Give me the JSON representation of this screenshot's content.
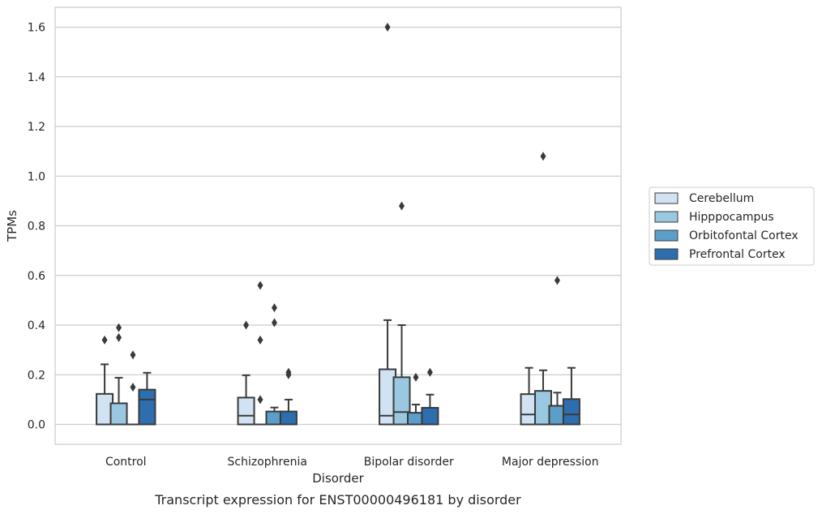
{
  "chart_data": {
    "type": "box",
    "title": "",
    "caption": "Transcript expression for ENST00000496181 by disorder",
    "xlabel": "Disorder",
    "ylabel": "TPMs",
    "ylim": [
      -0.08,
      1.68
    ],
    "y_ticks": [
      0.0,
      0.2,
      0.4,
      0.6,
      0.8,
      1.0,
      1.2,
      1.4,
      1.6
    ],
    "y_tick_labels": [
      "0.0",
      "0.2",
      "0.4",
      "0.6",
      "0.8",
      "1.0",
      "1.2",
      "1.4",
      "1.6"
    ],
    "grid": "horizontal",
    "legend_placement": "center-right outside",
    "categories": [
      "Control",
      "Schizophrenia",
      "Bipolar disorder",
      "Major depression"
    ],
    "series": [
      {
        "name": "Cerebellum",
        "color": "#d1e2f2",
        "boxes": [
          {
            "min": 0.0,
            "q1": 0.0,
            "median": 0.0,
            "q3": 0.123,
            "max": 0.242,
            "outliers": [
              0.34
            ]
          },
          {
            "min": 0.0,
            "q1": 0.0,
            "median": 0.035,
            "q3": 0.108,
            "max": 0.198,
            "outliers": [
              0.4
            ]
          },
          {
            "min": 0.0,
            "q1": 0.0,
            "median": 0.035,
            "q3": 0.222,
            "max": 0.42,
            "outliers": [
              1.6
            ]
          },
          {
            "min": 0.0,
            "q1": 0.0,
            "median": 0.04,
            "q3": 0.122,
            "max": 0.228,
            "outliers": []
          }
        ]
      },
      {
        "name": "Hipppocampus",
        "color": "#9ac8e0",
        "boxes": [
          {
            "min": 0.0,
            "q1": 0.0,
            "median": 0.0,
            "q3": 0.085,
            "max": 0.188,
            "outliers": [
              0.35,
              0.39
            ]
          },
          {
            "min": 0.0,
            "q1": 0.0,
            "median": 0.0,
            "q3": 0.0,
            "max": 0.0,
            "outliers": [
              0.1,
              0.34,
              0.56
            ]
          },
          {
            "min": 0.0,
            "q1": 0.0,
            "median": 0.05,
            "q3": 0.19,
            "max": 0.4,
            "outliers": [
              0.88
            ]
          },
          {
            "min": 0.0,
            "q1": 0.0,
            "median": 0.0,
            "q3": 0.135,
            "max": 0.218,
            "outliers": [
              1.08
            ]
          }
        ]
      },
      {
        "name": "Orbitofontal Cortex",
        "color": "#5a9ec9",
        "boxes": [
          {
            "min": 0.0,
            "q1": 0.0,
            "median": 0.0,
            "q3": 0.0,
            "max": 0.0,
            "outliers": [
              0.15,
              0.28
            ]
          },
          {
            "min": 0.0,
            "q1": 0.0,
            "median": 0.0,
            "q3": 0.052,
            "max": 0.068,
            "outliers": [
              0.41,
              0.47
            ]
          },
          {
            "min": 0.0,
            "q1": 0.0,
            "median": 0.0,
            "q3": 0.047,
            "max": 0.08,
            "outliers": [
              0.19
            ]
          },
          {
            "min": 0.0,
            "q1": 0.0,
            "median": 0.0,
            "q3": 0.075,
            "max": 0.128,
            "outliers": [
              0.58
            ]
          }
        ]
      },
      {
        "name": "Prefrontal Cortex",
        "color": "#2d6eaf",
        "boxes": [
          {
            "min": 0.0,
            "q1": 0.0,
            "median": 0.1,
            "q3": 0.14,
            "max": 0.208,
            "outliers": []
          },
          {
            "min": 0.0,
            "q1": 0.0,
            "median": 0.0,
            "q3": 0.052,
            "max": 0.1,
            "outliers": [
              0.2,
              0.21
            ]
          },
          {
            "min": 0.0,
            "q1": 0.0,
            "median": 0.0,
            "q3": 0.067,
            "max": 0.12,
            "outliers": [
              0.21
            ]
          },
          {
            "min": 0.0,
            "q1": 0.0,
            "median": 0.04,
            "q3": 0.102,
            "max": 0.228,
            "outliers": []
          }
        ]
      }
    ]
  }
}
